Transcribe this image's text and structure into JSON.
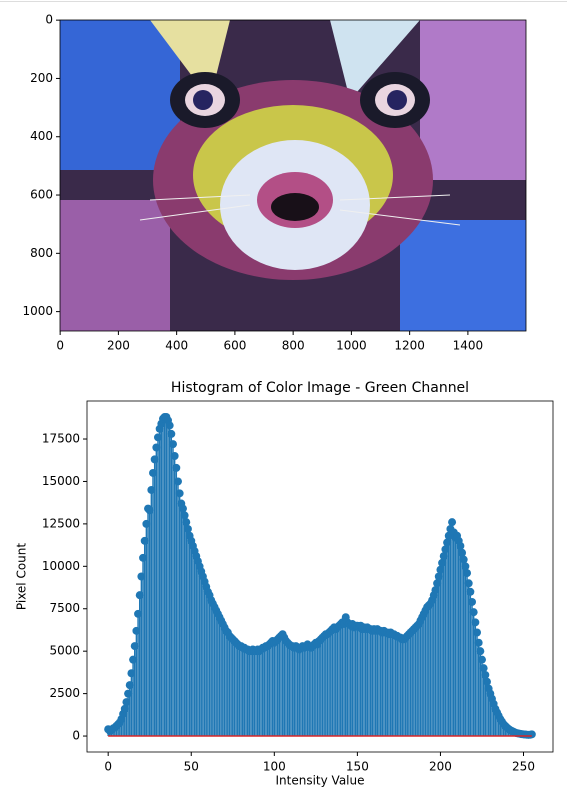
{
  "chart_data": [
    {
      "type": "image",
      "xlim": [
        -0.5,
        1599.5
      ],
      "ylim": [
        1066.5,
        -0.5
      ],
      "xticks": [
        0,
        200,
        400,
        600,
        800,
        1000,
        1200,
        1400
      ],
      "yticks": [
        0,
        200,
        400,
        600,
        800,
        1000
      ]
    },
    {
      "type": "stem",
      "title": "Histogram of Color Image - Green Channel",
      "xlabel": "Intensity Value",
      "ylabel": "Pixel Count",
      "color": "#1f77b4",
      "baseline_color": "#d62728",
      "xlim": [
        -12.75,
        267.75
      ],
      "ylim": [
        -940,
        19740
      ],
      "xticks": [
        0,
        50,
        100,
        150,
        200,
        250
      ],
      "yticks": [
        0,
        2500,
        5000,
        7500,
        10000,
        12500,
        15000,
        17500
      ],
      "x": [
        0,
        1,
        2,
        3,
        4,
        5,
        6,
        7,
        8,
        9,
        10,
        11,
        12,
        13,
        14,
        15,
        16,
        17,
        18,
        19,
        20,
        21,
        22,
        23,
        24,
        25,
        26,
        27,
        28,
        29,
        30,
        31,
        32,
        33,
        34,
        35,
        36,
        37,
        38,
        39,
        40,
        41,
        42,
        43,
        44,
        45,
        46,
        47,
        48,
        49,
        50,
        51,
        52,
        53,
        54,
        55,
        56,
        57,
        58,
        59,
        60,
        61,
        62,
        63,
        64,
        65,
        66,
        67,
        68,
        69,
        70,
        71,
        72,
        73,
        74,
        75,
        76,
        77,
        78,
        79,
        80,
        81,
        82,
        83,
        84,
        85,
        86,
        87,
        88,
        89,
        90,
        91,
        92,
        93,
        94,
        95,
        96,
        97,
        98,
        99,
        100,
        101,
        102,
        103,
        104,
        105,
        106,
        107,
        108,
        109,
        110,
        111,
        112,
        113,
        114,
        115,
        116,
        117,
        118,
        119,
        120,
        121,
        122,
        123,
        124,
        125,
        126,
        127,
        128,
        129,
        130,
        131,
        132,
        133,
        134,
        135,
        136,
        137,
        138,
        139,
        140,
        141,
        142,
        143,
        144,
        145,
        146,
        147,
        148,
        149,
        150,
        151,
        152,
        153,
        154,
        155,
        156,
        157,
        158,
        159,
        160,
        161,
        162,
        163,
        164,
        165,
        166,
        167,
        168,
        169,
        170,
        171,
        172,
        173,
        174,
        175,
        176,
        177,
        178,
        179,
        180,
        181,
        182,
        183,
        184,
        185,
        186,
        187,
        188,
        189,
        190,
        191,
        192,
        193,
        194,
        195,
        196,
        197,
        198,
        199,
        200,
        201,
        202,
        203,
        204,
        205,
        206,
        207,
        208,
        209,
        210,
        211,
        212,
        213,
        214,
        215,
        216,
        217,
        218,
        219,
        220,
        221,
        222,
        223,
        224,
        225,
        226,
        227,
        228,
        229,
        230,
        231,
        232,
        233,
        234,
        235,
        236,
        237,
        238,
        239,
        240,
        241,
        242,
        243,
        244,
        245,
        246,
        247,
        248,
        249,
        250,
        251,
        252,
        253,
        254,
        255
      ],
      "values": [
        400,
        300,
        350,
        450,
        500,
        600,
        700,
        800,
        1000,
        1300,
        1600,
        2000,
        2500,
        3000,
        3700,
        4500,
        5300,
        6200,
        7200,
        8300,
        9400,
        10500,
        11500,
        12500,
        13400,
        13300,
        14500,
        15500,
        16300,
        17000,
        17600,
        18100,
        18400,
        18700,
        18800,
        18800,
        18600,
        18300,
        17800,
        17200,
        16500,
        15800,
        15000,
        14300,
        13700,
        13400,
        13000,
        12600,
        12200,
        11800,
        11500,
        11200,
        10900,
        10600,
        10300,
        10000,
        9700,
        9400,
        9100,
        8800,
        8500,
        8300,
        8000,
        7800,
        7600,
        7400,
        7200,
        7000,
        6800,
        6600,
        6400,
        6200,
        6100,
        5900,
        5800,
        5700,
        5600,
        5500,
        5400,
        5300,
        5300,
        5200,
        5200,
        5100,
        5100,
        5000,
        5000,
        5100,
        5000,
        5000,
        5100,
        5000,
        5100,
        5200,
        5200,
        5300,
        5300,
        5400,
        5500,
        5600,
        5500,
        5600,
        5700,
        5800,
        5900,
        6000,
        5800,
        5600,
        5500,
        5400,
        5300,
        5300,
        5200,
        5300,
        5200,
        5100,
        5200,
        5300,
        5200,
        5300,
        5400,
        5300,
        5200,
        5300,
        5400,
        5500,
        5400,
        5600,
        5700,
        5800,
        5900,
        6000,
        6000,
        6100,
        6200,
        6300,
        6400,
        6300,
        6400,
        6500,
        6600,
        6700,
        6600,
        7000,
        6700,
        6600,
        6500,
        6600,
        6400,
        6500,
        6500,
        6400,
        6500,
        6300,
        6400,
        6300,
        6400,
        6300,
        6300,
        6200,
        6300,
        6200,
        6300,
        6200,
        6200,
        6100,
        6200,
        6100,
        6100,
        6000,
        6100,
        6000,
        6000,
        5900,
        5900,
        5800,
        5800,
        5700,
        5700,
        5800,
        5900,
        6000,
        6100,
        6200,
        6300,
        6400,
        6500,
        6600,
        6800,
        7000,
        7200,
        7400,
        7600,
        7700,
        7800,
        8000,
        8300,
        8600,
        9000,
        9400,
        9800,
        10200,
        10600,
        11000,
        11400,
        11800,
        12200,
        12600,
        12000,
        11700,
        11800,
        11500,
        11200,
        10800,
        10400,
        10000,
        9600,
        9000,
        8500,
        7900,
        7300,
        6700,
        6100,
        5500,
        5000,
        4500,
        4000,
        3600,
        3200,
        2800,
        2500,
        2200,
        1900,
        1600,
        1400,
        1200,
        1000,
        850,
        700,
        600,
        500,
        420,
        350,
        300,
        250,
        200,
        170,
        150,
        130,
        110,
        100,
        90,
        80,
        70,
        80,
        100
      ]
    }
  ]
}
